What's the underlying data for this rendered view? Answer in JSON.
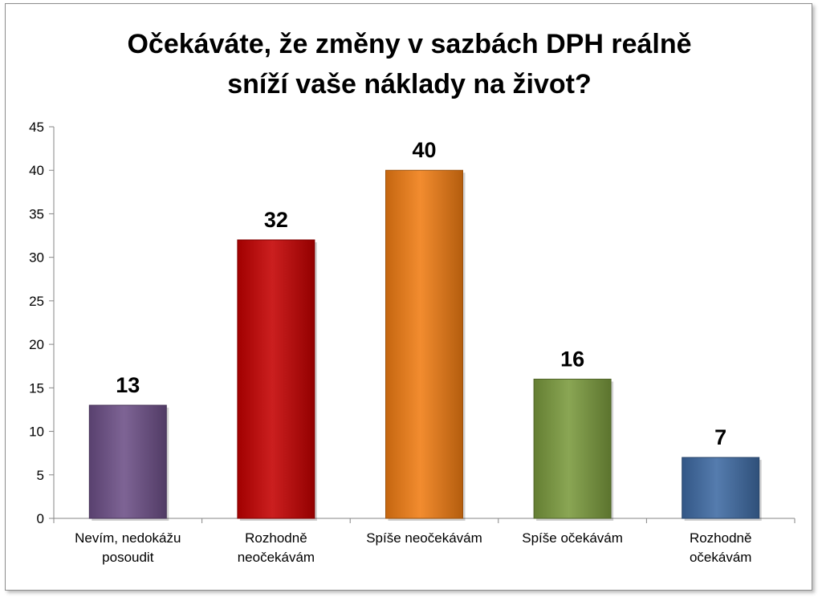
{
  "chart_data": {
    "type": "bar",
    "title": "Očekáváte, že změny v sazbách DPH reálně sníží vaše náklady na život?",
    "title_lines": [
      "Očekáváte, že změny v sazbách DPH reálně",
      "sníží vaše náklady na život?"
    ],
    "categories": [
      [
        "Nevím, nedokážu",
        "posoudit"
      ],
      [
        "Rozhodně",
        "neočekávám"
      ],
      [
        "Spíše neočekávám"
      ],
      [
        "Spíše očekávám"
      ],
      [
        "Rozhodně",
        "očekávám"
      ]
    ],
    "values": [
      13,
      32,
      40,
      16,
      7
    ],
    "data_labels": [
      "13",
      "32",
      "40",
      "16",
      "7"
    ],
    "colors": [
      "#6c4f87",
      "#c40000",
      "#f07c13",
      "#7a9a3d",
      "#3e6aa3"
    ],
    "ylim": [
      0,
      45
    ],
    "yticks": [
      0,
      5,
      10,
      15,
      20,
      25,
      30,
      35,
      40,
      45
    ],
    "grid": false,
    "legend": "none"
  }
}
